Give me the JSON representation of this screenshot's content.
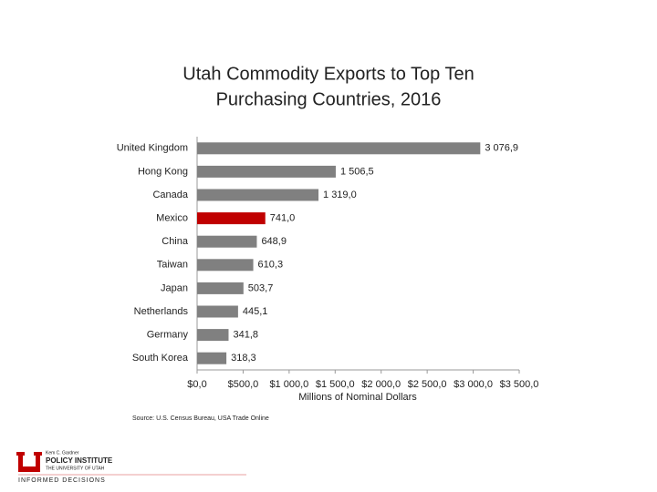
{
  "chart_data": {
    "type": "barh",
    "title": "Utah Commodity Exports to Top Ten",
    "subtitle": "Purchasing Countries, 2016",
    "categories": [
      "United Kingdom",
      "Hong Kong",
      "Canada",
      "Mexico",
      "China",
      "Taiwan",
      "Japan",
      "Netherlands",
      "Germany",
      "South Korea"
    ],
    "values": [
      3076.9,
      1506.5,
      1319.0,
      741.0,
      648.9,
      610.3,
      503.7,
      445.1,
      341.8,
      318.3
    ],
    "value_labels": [
      "3 076,9",
      "1 506,5",
      "1 319,0",
      "741,0",
      "648,9",
      "610,3",
      "503,7",
      "445,1",
      "341,8",
      "318,3"
    ],
    "colors": [
      "#808080",
      "#808080",
      "#808080",
      "#c00000",
      "#808080",
      "#808080",
      "#808080",
      "#808080",
      "#808080",
      "#808080"
    ],
    "xlim": [
      0,
      3500
    ],
    "xticks": [
      {
        "value": 0,
        "label": "$0,0"
      },
      {
        "value": 500,
        "label": "$500,0"
      },
      {
        "value": 1000,
        "label": "$1 000,0"
      },
      {
        "value": 1500,
        "label": "$1 500,0"
      },
      {
        "value": 2000,
        "label": "$2 000,0"
      },
      {
        "value": 2500,
        "label": "$2 500,0"
      },
      {
        "value": 3000,
        "label": "$3 000,0"
      },
      {
        "value": 3500,
        "label": "$3 500,0"
      }
    ],
    "xlabel": "Millions of Nominal Dollars",
    "source": "Source: U.S. Census Bureau, USA Trade Online"
  },
  "logo": {
    "line1": "Kem C. Gardner",
    "line2": "POLICY INSTITUTE",
    "line3": "THE UNIVERSITY OF UTAH",
    "tagline": "INFORMED DECISIONS"
  }
}
